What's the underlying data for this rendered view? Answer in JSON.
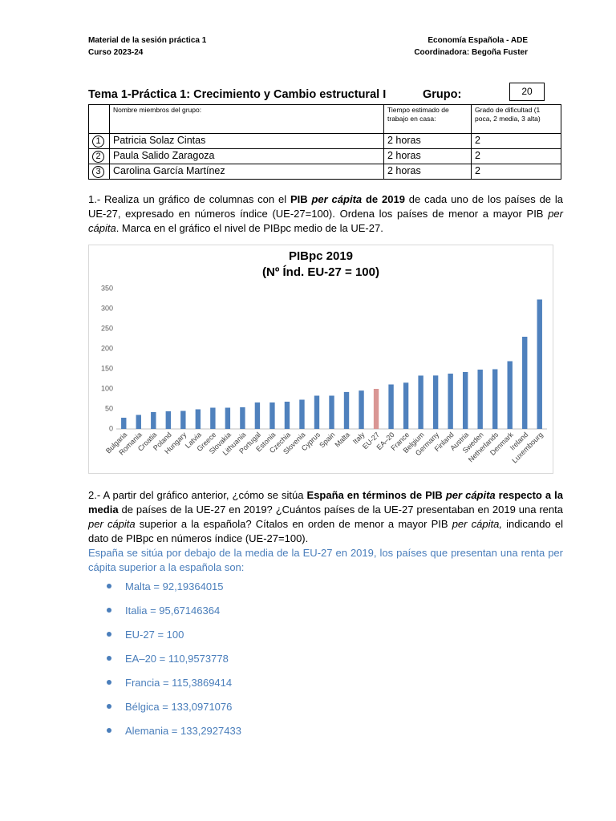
{
  "header": {
    "left": [
      "Material de la sesión práctica 1",
      "Curso 2023-24"
    ],
    "right": [
      "Economía Española - ADE",
      "Coordinadora: Begoña Fuster"
    ]
  },
  "title": "Tema 1-Práctica 1: Crecimiento y Cambio estructural I",
  "group_label": "Grupo:",
  "group_number": "20",
  "table": {
    "header": [
      "Nombre miembros del grupo:",
      "Tiempo estimado de trabajo en casa:",
      "Grado de dificultad (1 poca, 2 media, 3 alta)"
    ],
    "rows": [
      [
        "1",
        "Patricia Solaz Cintas",
        "2 horas",
        "2"
      ],
      [
        "2",
        "Paula Salido Zaragoza",
        "2 horas",
        "2"
      ],
      [
        "3",
        "Carolina García Martínez",
        "2 horas",
        "2"
      ]
    ]
  },
  "question1": [
    {
      "text": "1.- Realiza un gráfico de columnas con el "
    },
    {
      "text": "PIB ",
      "bold": true
    },
    {
      "text": "per cápita",
      "bold": true,
      "italic": true
    },
    {
      "text": " de 2019",
      "bold": true
    },
    {
      "text": " de cada uno de los países de la UE-27, expresado en números índice (UE-27=100). Ordena los países de menor a mayor PIB "
    },
    {
      "text": "per cápita",
      "italic": true
    },
    {
      "text": ". Marca en el gráfico el nivel de PIBpc medio de la UE-27."
    }
  ],
  "chart_data": {
    "type": "bar",
    "title": "PIBpc 2019",
    "subtitle": "(Nº Índ. EU-27 = 100)",
    "categories": [
      "Bulgaria",
      "Romania",
      "Croatia",
      "Poland",
      "Hungary",
      "Latvia",
      "Greece",
      "Slovakia",
      "Lithuania",
      "Portugal",
      "Estonia",
      "Czechia",
      "Slovenia",
      "Cyprus",
      "Spain",
      "Malta",
      "Italy",
      "EU-27",
      "EA–20",
      "France",
      "Belgium",
      "Germany",
      "Finland",
      "Austria",
      "Sweden",
      "Netherlands",
      "Denmark",
      "Ireland",
      "Luxembourg"
    ],
    "values": [
      28,
      35,
      42,
      44,
      45,
      49,
      53,
      53,
      54,
      66,
      66,
      68,
      73,
      83,
      83,
      92.2,
      95.7,
      100,
      111,
      115.4,
      133.1,
      133.3,
      138,
      142,
      148,
      149,
      169,
      230,
      323
    ],
    "colors": [
      "#4f81bd",
      "#4f81bd",
      "#4f81bd",
      "#4f81bd",
      "#4f81bd",
      "#4f81bd",
      "#4f81bd",
      "#4f81bd",
      "#4f81bd",
      "#4f81bd",
      "#4f81bd",
      "#4f81bd",
      "#4f81bd",
      "#4f81bd",
      "#4f81bd",
      "#4f81bd",
      "#4f81bd",
      "#d99694",
      "#4f81bd",
      "#4f81bd",
      "#4f81bd",
      "#4f81bd",
      "#4f81bd",
      "#4f81bd",
      "#4f81bd",
      "#4f81bd",
      "#4f81bd",
      "#4f81bd",
      "#4f81bd"
    ],
    "ylim": [
      0,
      350
    ],
    "yticks": [
      0,
      50,
      100,
      150,
      200,
      250,
      300,
      350
    ],
    "grid": false
  },
  "question2": [
    {
      "text": "2.- A partir del gráfico anterior, ¿cómo se sitúa "
    },
    {
      "text": "España en términos de PIB ",
      "bold": true
    },
    {
      "text": "per cápita",
      "bold": true,
      "italic": true
    },
    {
      "text": " respecto a la media",
      "bold": true
    },
    {
      "text": " de países de la UE-27 en 2019? ¿Cuántos países de la UE-27 presentaban en 2019 una renta "
    },
    {
      "text": "per cápita",
      "italic": true
    },
    {
      "text": " superior a la española? Cítalos en orden de menor a mayor PIB "
    },
    {
      "text": "per cápita,",
      "italic": true
    },
    {
      "text": " indicando el dato de PIBpc en números índice (UE-27=100)."
    }
  ],
  "answer": "España se sitúa por debajo de la media de la EU-27 en 2019, los países que presentan una renta per cápita superior a la española son:",
  "bullets": [
    "Malta = 92,19364015",
    "Italia = 95,67146364",
    "EU-27 = 100",
    "EA–20 = 110,9573778",
    "Francia = 115,3869414",
    "Bélgica = 133,0971076",
    "Alemania = 133,2927433"
  ]
}
